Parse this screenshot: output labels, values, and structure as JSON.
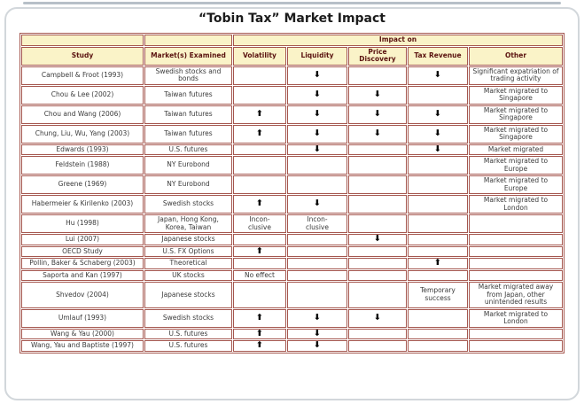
{
  "title": "“Tobin Tax” Market Impact",
  "colors": {
    "table_border": "#a5574f",
    "header_background": "#faf3c8",
    "header_text": "#5a120f",
    "body_text": "#3a3a3a",
    "frame_border": "#d2d7db"
  },
  "icons": {
    "up_arrow": "⬆",
    "down_arrow": "⬇"
  },
  "table": {
    "impact_on_label": "Impact on",
    "columns": [
      "Study",
      "Market(s) Examined",
      "Volatility",
      "Liquidity",
      "Price Discovery",
      "Tax Revenue",
      "Other"
    ],
    "rows": [
      {
        "study": "Campbell & Froot (1993)",
        "market": "Swedish stocks and bonds",
        "volatility": "",
        "liquidity": "⬇",
        "price_discovery": "",
        "tax_revenue": "⬇",
        "other": "Significant expatriation of trading activity"
      },
      {
        "study": "Chou & Lee (2002)",
        "market": "Taiwan futures",
        "volatility": "",
        "liquidity": "⬇",
        "price_discovery": "⬇",
        "tax_revenue": "",
        "other": "Market migrated to Singapore"
      },
      {
        "study": "Chou and Wang (2006)",
        "market": "Taiwan futures",
        "volatility": "⬆",
        "liquidity": "⬇",
        "price_discovery": "⬇",
        "tax_revenue": "⬇",
        "other": "Market migrated to Singapore"
      },
      {
        "study": "Chung, Liu, Wu, Yang (2003)",
        "market": "Taiwan futures",
        "volatility": "⬆",
        "liquidity": "⬇",
        "price_discovery": "⬇",
        "tax_revenue": "⬇",
        "other": "Market migrated to Singapore"
      },
      {
        "study": "Edwards (1993)",
        "market": "U.S. futures",
        "volatility": "",
        "liquidity": "⬇",
        "price_discovery": "",
        "tax_revenue": "⬇",
        "other": "Market migrated"
      },
      {
        "study": "Feldstein (1988)",
        "market": "NY Eurobond",
        "volatility": "",
        "liquidity": "",
        "price_discovery": "",
        "tax_revenue": "",
        "other": "Market migrated to Europe"
      },
      {
        "study": "Greene (1969)",
        "market": "NY Eurobond",
        "volatility": "",
        "liquidity": "",
        "price_discovery": "",
        "tax_revenue": "",
        "other": "Market migrated to Europe"
      },
      {
        "study": "Habermeier & Kirilenko (2003)",
        "market": "Swedish stocks",
        "volatility": "⬆",
        "liquidity": "⬇",
        "price_discovery": "",
        "tax_revenue": "",
        "other": "Market migrated to London"
      },
      {
        "study": "Hu (1998)",
        "market": "Japan, Hong Kong, Korea, Taiwan",
        "volatility": "Incon-\nclusive",
        "liquidity": "Incon-\nclusive",
        "price_discovery": "",
        "tax_revenue": "",
        "other": ""
      },
      {
        "study": "Lui (2007)",
        "market": "Japanese stocks",
        "volatility": "",
        "liquidity": "",
        "price_discovery": "⬇",
        "tax_revenue": "",
        "other": ""
      },
      {
        "study": "OECD Study",
        "market": "U.S. FX Options",
        "volatility": "⬆",
        "liquidity": "",
        "price_discovery": "",
        "tax_revenue": "",
        "other": ""
      },
      {
        "study": "Pollin, Baker & Schaberg (2003)",
        "market": "Theoretical",
        "volatility": "",
        "liquidity": "",
        "price_discovery": "",
        "tax_revenue": "⬆",
        "other": ""
      },
      {
        "study": "Saporta and Kan (1997)",
        "market": "UK stocks",
        "volatility": "No effect",
        "liquidity": "",
        "price_discovery": "",
        "tax_revenue": "",
        "other": ""
      },
      {
        "study": "Shvedov (2004)",
        "market": "Japanese stocks",
        "volatility": "",
        "liquidity": "",
        "price_discovery": "",
        "tax_revenue": "Temporary success",
        "other": "Market migrated away from Japan, other unintended results"
      },
      {
        "study": "Umlauf (1993)",
        "market": "Swedish stocks",
        "volatility": "⬆",
        "liquidity": "⬇",
        "price_discovery": "⬇",
        "tax_revenue": "",
        "other": "Market migrated to London"
      },
      {
        "study": "Wang & Yau (2000)",
        "market": "U.S. futures",
        "volatility": "⬆",
        "liquidity": "⬇",
        "price_discovery": "",
        "tax_revenue": "",
        "other": ""
      },
      {
        "study": "Wang, Yau and Baptiste (1997)",
        "market": "U.S. futures",
        "volatility": "⬆",
        "liquidity": "⬇",
        "price_discovery": "",
        "tax_revenue": "",
        "other": ""
      }
    ]
  }
}
